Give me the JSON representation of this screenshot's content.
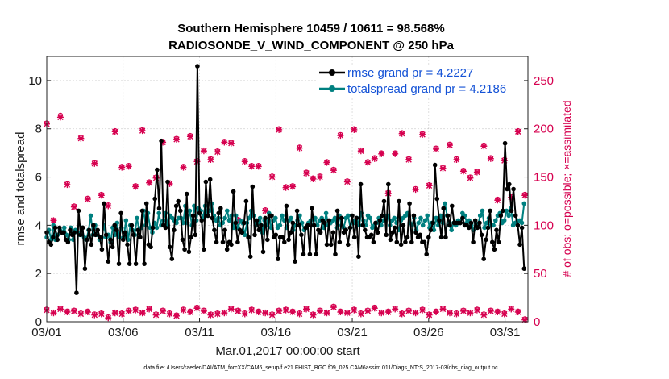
{
  "chart_data": {
    "type": "line",
    "title_line1": "Southern Hemisphere 10459 / 10611 = 98.568%",
    "title_line2": "RADIOSONDE_V_WIND_COMPONENT @ 250 hPa",
    "xlabel": "Mar.01,2017 00:00:00 start",
    "ylabel": "rmse and totalspread",
    "ylabel_right": "# of obs: o=possible; ×=assimilated",
    "xlim": [
      0,
      31.5
    ],
    "ylim": [
      0,
      11
    ],
    "ylim_right": [
      0,
      275
    ],
    "x_ticks": [
      0,
      5,
      10,
      15,
      20,
      25,
      30
    ],
    "x_tick_labels": [
      "03/01",
      "03/06",
      "03/11",
      "03/16",
      "03/21",
      "03/26",
      "03/31"
    ],
    "y_ticks": [
      0,
      2,
      4,
      6,
      8,
      10
    ],
    "y_tick_labels": [
      "0",
      "2",
      "4",
      "6",
      "8",
      "10"
    ],
    "y_ticks_right": [
      0,
      50,
      100,
      150,
      200,
      250
    ],
    "y_tick_labels_right": [
      "0",
      "50",
      "100",
      "150",
      "200",
      "250"
    ],
    "grid": true,
    "legend_position": "top-right",
    "colors": {
      "rmse": "#000000",
      "spread": "#008080",
      "obs": "#d6004f",
      "legend_text": "#1452d6"
    },
    "series": [
      {
        "name": "rmse grand pr = 4.2227",
        "key": "rmse",
        "values": [
          3.7,
          3.3,
          3.2,
          3.5,
          3.9,
          3.4,
          3.9,
          3.7,
          3.7,
          3.4,
          3.3,
          3.8,
          3.6,
          3.7,
          1.2,
          4.6,
          3.6,
          3.9,
          2.2,
          3.4,
          3.8,
          3.2,
          4.0,
          3.6,
          3.8,
          3.5,
          3.0,
          4.9,
          3.6,
          2.5,
          3.4,
          3.1,
          4.0,
          3.8,
          2.4,
          4.5,
          3.4,
          3.7,
          3.2,
          2.4,
          4.0,
          3.6,
          2.4,
          3.8,
          3.5,
          4.6,
          2.4,
          4.9,
          3.2,
          3.1,
          3.9,
          5.1,
          6.3,
          4.7,
          7.5,
          4.0,
          3.9,
          5.8,
          3.1,
          2.6,
          3.8,
          4.8,
          5.0,
          4.6,
          3.4,
          3.0,
          5.3,
          2.9,
          3.5,
          4.4,
          3.6,
          10.6,
          4.5,
          4.2,
          3.0,
          5.8,
          4.4,
          5.9,
          4.3,
          3.8,
          3.3,
          4.5,
          4.7,
          3.3,
          3.8,
          3.0,
          3.3,
          3.2,
          5.4,
          4.1,
          3.3,
          3.8,
          3.7,
          4.1,
          5.0,
          3.5,
          2.7,
          5.6,
          3.6,
          4.2,
          3.8,
          4.0,
          2.9,
          4.3,
          3.4,
          4.4,
          4.4,
          3.5,
          3.6,
          2.6,
          3.5,
          3.5,
          3.3,
          4.8,
          3.4,
          3.7,
          4.1,
          2.5,
          4.6,
          4.0,
          3.6,
          2.8,
          3.9,
          4.0,
          2.8,
          4.7,
          4.0,
          2.8,
          3.8,
          3.7,
          4.2,
          4.1,
          3.2,
          4.2,
          3.2,
          3.7,
          2.8,
          4.6,
          3.3,
          4.3,
          3.7,
          3.8,
          3.2,
          3.9,
          4.4,
          3.5,
          4.3,
          2.7,
          5.7,
          4.0,
          3.8,
          3.5,
          3.5,
          3.6,
          3.3,
          4.1,
          3.7,
          4.2,
          4.4,
          5.0,
          3.6,
          5.7,
          3.4,
          3.7,
          3.9,
          3.3,
          5.0,
          3.2,
          4.0,
          3.3,
          3.5,
          4.9,
          3.3,
          4.4,
          3.7,
          3.5,
          3.6,
          3.3,
          3.3,
          2.8,
          3.5,
          3.8,
          4.1,
          6.5,
          5.1,
          4.2,
          3.5,
          4.7,
          3.5,
          4.4,
          4.0,
          4.8,
          4.1,
          4.1,
          4.1,
          4.1,
          4.3,
          4.0,
          4.0,
          3.9,
          4.1,
          3.3,
          4.2,
          3.9,
          4.1,
          3.6,
          2.6,
          3.4,
          3.9,
          4.6,
          3.3,
          3.0,
          3.8,
          3.3,
          4.4,
          4.6,
          7.4,
          5.5,
          5.7,
          4.6,
          5.5,
          4.4,
          4.0,
          3.2,
          3.9,
          2.2
        ],
        "marker": "dot"
      },
      {
        "name": "totalspread grand pr = 4.2186",
        "key": "spread",
        "values": [
          3.5,
          3.8,
          3.4,
          4.0,
          3.4,
          3.6,
          3.8,
          3.7,
          3.9,
          3.6,
          3.4,
          3.9,
          3.4,
          3.8,
          3.7,
          3.6,
          3.9,
          3.5,
          3.4,
          3.8,
          4.4,
          3.6,
          4.0,
          3.6,
          3.4,
          3.5,
          4.0,
          3.5,
          3.6,
          3.3,
          3.9,
          3.6,
          4.1,
          3.5,
          3.9,
          3.5,
          4.2,
          3.4,
          4.0,
          3.8,
          3.6,
          4.3,
          3.8,
          3.9,
          4.6,
          4.0,
          4.5,
          3.9,
          3.7,
          4.1,
          3.9,
          4.5,
          4.0,
          4.2,
          4.5,
          4.0,
          4.4,
          4.3,
          4.2,
          4.1,
          4.3,
          4.3,
          4.1,
          4.8,
          4.1,
          4.6,
          4.0,
          4.8,
          4.2,
          4.7,
          4.6,
          4.3,
          4.8,
          4.4,
          4.6,
          4.9,
          4.4,
          4.2,
          4.3,
          4.0,
          4.1,
          4.3,
          4.6,
          4.2,
          4.4,
          3.9,
          4.4,
          3.9,
          4.2,
          4.1,
          3.6,
          4.1,
          4.3,
          4.6,
          4.4,
          4.0,
          4.1,
          4.3,
          3.7,
          4.2,
          4.0,
          4.5,
          3.9,
          4.2,
          4.3,
          3.9,
          4.0,
          4.4,
          4.2,
          3.9,
          4.2,
          4.3,
          3.8,
          4.0,
          4.2,
          4.4,
          4.1,
          3.8,
          3.9,
          4.1,
          4.2,
          4.0,
          4.3,
          4.0,
          4.2,
          4.3,
          3.9,
          4.5,
          4.0,
          4.1,
          4.2,
          4.3,
          3.9,
          4.4,
          4.0,
          3.9,
          4.3,
          4.4,
          3.9,
          4.2,
          4.1,
          4.3,
          4.0,
          4.5,
          4.2,
          4.0,
          4.4,
          4.3,
          3.9,
          4.0,
          4.1,
          4.3,
          4.0,
          4.2,
          4.3,
          4.4,
          4.0,
          4.2,
          4.3,
          4.1,
          3.8,
          4.2,
          4.3,
          4.4,
          4.5,
          4.1,
          4.0,
          4.3,
          3.8,
          4.1,
          4.3,
          4.0,
          4.2,
          4.4,
          3.9,
          4.1,
          3.8,
          4.3,
          4.0,
          4.4,
          4.1,
          4.9,
          4.4,
          4.0,
          3.8,
          4.1,
          4.0,
          4.2,
          4.1,
          4.5,
          4.4,
          4.1,
          4.2,
          4.0,
          3.8,
          4.1,
          4.0,
          4.4,
          4.6,
          3.9,
          4.1,
          4.3,
          4.0,
          4.0,
          4.2,
          4.4,
          4.5,
          4.1,
          4.2,
          4.6,
          4.4,
          4.7,
          4.0,
          4.1,
          4.2,
          4.2,
          4.1,
          4.9
        ],
        "marker": "dot"
      }
    ],
    "obs_possible": [
      206,
      105,
      214,
      143,
      120,
      191,
      128,
      165,
      132,
      121,
      198,
      161,
      162,
      141,
      199,
      145,
      150,
      187,
      144,
      190,
      161,
      193,
      167,
      178,
      169,
      177,
      187,
      186,
      106,
      167,
      162,
      162,
      116,
      151,
      200,
      140,
      141,
      181,
      155,
      149,
      151,
      166,
      158,
      194,
      146,
      200,
      178,
      166,
      170,
      175,
      134,
      175,
      196,
      169,
      138,
      195,
      142,
      180,
      160,
      184,
      169,
      157,
      150,
      156,
      183,
      170,
      127,
      168,
      130,
      198,
      132
    ],
    "obs_assimilated": [
      205,
      105,
      212,
      142,
      119,
      190,
      127,
      164,
      131,
      120,
      197,
      160,
      161,
      140,
      198,
      144,
      149,
      186,
      143,
      189,
      160,
      192,
      166,
      177,
      168,
      176,
      186,
      185,
      105,
      166,
      161,
      161,
      115,
      150,
      199,
      139,
      140,
      180,
      154,
      148,
      150,
      165,
      157,
      193,
      145,
      199,
      177,
      165,
      169,
      174,
      133,
      174,
      195,
      168,
      137,
      194,
      141,
      179,
      159,
      183,
      168,
      156,
      149,
      155,
      182,
      169,
      126,
      167,
      129,
      197,
      131
    ],
    "obs_low_possible": [
      13,
      10,
      14,
      11,
      12,
      9,
      11,
      8,
      9,
      5,
      10,
      9,
      12,
      13,
      10,
      14,
      8,
      12,
      9,
      7,
      13,
      11,
      15,
      12,
      8,
      9,
      10,
      14,
      12,
      9,
      13,
      11,
      10,
      8,
      12,
      13,
      11,
      9,
      14,
      8,
      12,
      10,
      16,
      11,
      10,
      13,
      9,
      12,
      15,
      10,
      11,
      14,
      9,
      12,
      10,
      13,
      8,
      11,
      14,
      10,
      9,
      12,
      10,
      13,
      8,
      12,
      11,
      9,
      14,
      11,
      3
    ],
    "obs_low_assimilated": [
      12,
      9,
      13,
      10,
      11,
      8,
      10,
      7,
      8,
      4,
      9,
      8,
      11,
      12,
      9,
      13,
      7,
      11,
      8,
      6,
      12,
      10,
      14,
      11,
      7,
      8,
      9,
      13,
      11,
      8,
      12,
      10,
      9,
      7,
      11,
      12,
      10,
      8,
      13,
      7,
      11,
      9,
      15,
      10,
      9,
      12,
      8,
      11,
      14,
      9,
      10,
      13,
      8,
      11,
      9,
      12,
      7,
      10,
      13,
      9,
      8,
      11,
      9,
      12,
      7,
      11,
      10,
      8,
      13,
      10,
      2
    ],
    "footnote": "data file: /Users/raeder/DAI/ATM_forcXX/CAM6_setup/f.e21.FHIST_BGC.f09_025.CAM6assim.011/Diags_NTrS_2017-03/obs_diag_output.nc"
  }
}
